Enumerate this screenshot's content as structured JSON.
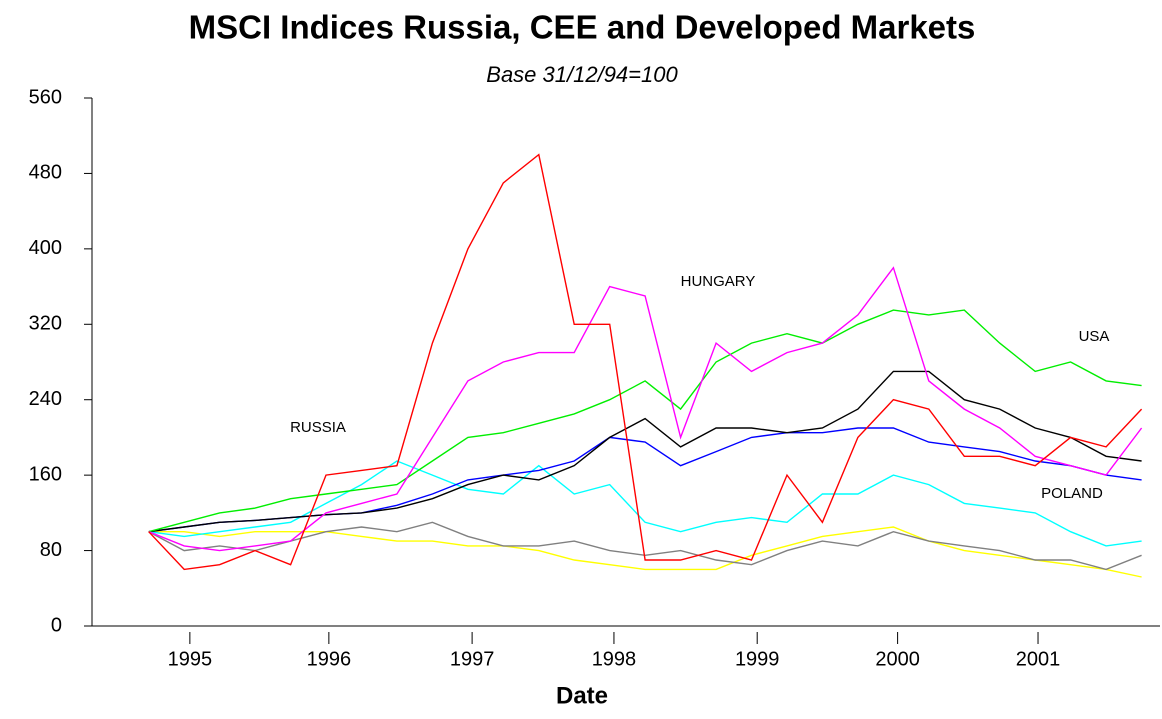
{
  "chart_data": {
    "type": "line",
    "title": "MSCI Indices Russia, CEE and Developed Markets",
    "subtitle": "Base 31/12/94=100",
    "x_label": "Date",
    "x": [
      1995,
      1995.25,
      1995.5,
      1995.75,
      1996,
      1996.25,
      1996.5,
      1996.75,
      1997,
      1997.25,
      1997.5,
      1997.75,
      1998,
      1998.25,
      1998.5,
      1998.75,
      1999,
      1999.25,
      1999.5,
      1999.75,
      2000,
      2000.25,
      2000.5,
      2000.75,
      2001,
      2001.25,
      2001.5,
      2001.75,
      2002
    ],
    "xlim": [
      1994.6,
      2002.13
    ],
    "xticks": [
      {
        "value": 1995.29,
        "label": "1995"
      },
      {
        "value": 1996.27,
        "label": "1996"
      },
      {
        "value": 1997.28,
        "label": "1997"
      },
      {
        "value": 1998.28,
        "label": "1998"
      },
      {
        "value": 1999.29,
        "label": "1999"
      },
      {
        "value": 2000.28,
        "label": "2000"
      },
      {
        "value": 2001.27,
        "label": "2001"
      }
    ],
    "ylim": [
      0,
      560
    ],
    "yticks": [
      0,
      80,
      160,
      240,
      320,
      400,
      480,
      560
    ],
    "annotations": [
      "RUSSIA",
      "HUNGARY",
      "USA",
      "POLAND"
    ],
    "series": [
      {
        "color": "#ff0000",
        "values": [
          100,
          60,
          65,
          80,
          65,
          160,
          165,
          170,
          300,
          400,
          470,
          500,
          320,
          320,
          70,
          70,
          80,
          70,
          160,
          110,
          200,
          240,
          230,
          180,
          180,
          170,
          200,
          190,
          230
        ]
      },
      {
        "color": "#ff00ff",
        "values": [
          100,
          85,
          80,
          85,
          90,
          120,
          130,
          140,
          200,
          260,
          280,
          290,
          290,
          360,
          350,
          200,
          300,
          270,
          290,
          300,
          330,
          380,
          260,
          230,
          210,
          180,
          170,
          160,
          210
        ]
      },
      {
        "color": "#00ee00",
        "values": [
          100,
          110,
          120,
          125,
          135,
          140,
          145,
          150,
          175,
          200,
          205,
          215,
          225,
          240,
          260,
          230,
          280,
          300,
          310,
          300,
          320,
          335,
          330,
          335,
          300,
          270,
          280,
          260,
          255
        ]
      },
      {
        "color": "#000000",
        "values": [
          100,
          105,
          110,
          112,
          115,
          118,
          120,
          125,
          135,
          150,
          160,
          155,
          170,
          200,
          220,
          190,
          210,
          210,
          205,
          210,
          230,
          270,
          270,
          240,
          230,
          210,
          200,
          180,
          175
        ]
      },
      {
        "color": "#0000ff",
        "values": [
          100,
          105,
          110,
          112,
          115,
          118,
          120,
          128,
          140,
          155,
          160,
          165,
          175,
          200,
          195,
          170,
          185,
          200,
          205,
          205,
          210,
          210,
          195,
          190,
          185,
          175,
          170,
          160,
          155
        ]
      },
      {
        "color": "#00ffff",
        "values": [
          100,
          95,
          100,
          105,
          110,
          130,
          150,
          175,
          160,
          145,
          140,
          170,
          140,
          150,
          110,
          100,
          110,
          115,
          110,
          140,
          140,
          160,
          150,
          130,
          125,
          120,
          100,
          85,
          90
        ]
      },
      {
        "color": "#808080",
        "values": [
          100,
          80,
          85,
          80,
          90,
          100,
          105,
          100,
          110,
          95,
          85,
          85,
          90,
          80,
          75,
          80,
          70,
          65,
          80,
          90,
          85,
          100,
          90,
          85,
          80,
          70,
          70,
          60,
          75
        ]
      },
      {
        "color": "#ffff00",
        "values": [
          100,
          100,
          95,
          100,
          100,
          100,
          95,
          90,
          90,
          85,
          85,
          80,
          70,
          65,
          60,
          60,
          60,
          75,
          85,
          95,
          100,
          105,
          90,
          80,
          75,
          70,
          65,
          60,
          52
        ]
      }
    ]
  }
}
